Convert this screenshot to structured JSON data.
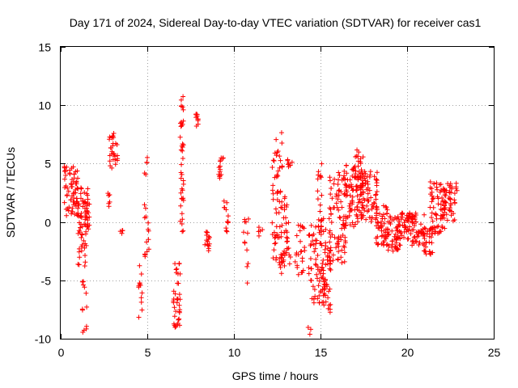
{
  "chart_data": {
    "type": "scatter",
    "title": "Day 171 of 2024, Sidereal Day-to-day VTEC variation (SDTVAR) for receiver cas1",
    "xlabel": "GPS time / hours",
    "ylabel": "SDTVAR / TECUs",
    "xlim": [
      0,
      25
    ],
    "ylim": [
      -10,
      15
    ],
    "x_ticks": [
      0,
      5,
      10,
      15,
      20,
      25
    ],
    "y_ticks": [
      -10,
      -5,
      0,
      5,
      10,
      15
    ],
    "grid": true,
    "marker": "+",
    "color": "#ff0000",
    "clusters": [
      {
        "x0": 0.2,
        "x1": 1.0,
        "y0": 0.5,
        "y1": 4.8,
        "n": 70
      },
      {
        "x0": 0.9,
        "x1": 1.6,
        "y0": -4.0,
        "y1": 3.0,
        "n": 60
      },
      {
        "x0": 1.2,
        "x1": 1.5,
        "y0": -9.6,
        "y1": -5.0,
        "n": 12
      },
      {
        "x0": 1.4,
        "x1": 1.7,
        "y0": -0.5,
        "y1": 2.0,
        "n": 18
      },
      {
        "x0": 2.8,
        "x1": 3.3,
        "y0": 4.5,
        "y1": 7.6,
        "n": 28
      },
      {
        "x0": 2.7,
        "x1": 2.9,
        "y0": 1.2,
        "y1": 2.6,
        "n": 6
      },
      {
        "x0": 3.4,
        "x1": 3.6,
        "y0": -1.0,
        "y1": -0.1,
        "n": 4
      },
      {
        "x0": 4.5,
        "x1": 4.7,
        "y0": -8.6,
        "y1": -3.5,
        "n": 12
      },
      {
        "x0": 4.8,
        "x1": 5.1,
        "y0": -3.0,
        "y1": 1.6,
        "n": 14
      },
      {
        "x0": 4.8,
        "x1": 5.0,
        "y0": 3.8,
        "y1": 5.6,
        "n": 5
      },
      {
        "x0": 6.5,
        "x1": 6.9,
        "y0": -9.2,
        "y1": -3.5,
        "n": 38
      },
      {
        "x0": 6.9,
        "x1": 7.1,
        "y0": -1.0,
        "y1": 10.8,
        "n": 40
      },
      {
        "x0": 7.8,
        "x1": 8.0,
        "y0": 8.2,
        "y1": 9.3,
        "n": 10
      },
      {
        "x0": 8.3,
        "x1": 8.6,
        "y0": -2.5,
        "y1": -0.5,
        "n": 16
      },
      {
        "x0": 9.1,
        "x1": 9.4,
        "y0": 3.5,
        "y1": 5.5,
        "n": 14
      },
      {
        "x0": 9.4,
        "x1": 9.7,
        "y0": -1.0,
        "y1": 2.0,
        "n": 12
      },
      {
        "x0": 10.5,
        "x1": 10.9,
        "y0": -5.3,
        "y1": 0.3,
        "n": 12
      },
      {
        "x0": 11.4,
        "x1": 11.7,
        "y0": -1.2,
        "y1": -0.4,
        "n": 5
      },
      {
        "x0": 12.2,
        "x1": 12.8,
        "y0": -3.5,
        "y1": 8.0,
        "n": 60
      },
      {
        "x0": 12.6,
        "x1": 13.3,
        "y0": -4.5,
        "y1": 2.5,
        "n": 40
      },
      {
        "x0": 13.1,
        "x1": 13.4,
        "y0": 4.5,
        "y1": 5.4,
        "n": 8
      },
      {
        "x0": 13.5,
        "x1": 14.5,
        "y0": -5.0,
        "y1": 0.0,
        "n": 30
      },
      {
        "x0": 14.2,
        "x1": 14.5,
        "y0": -9.7,
        "y1": -9.0,
        "n": 3
      },
      {
        "x0": 14.3,
        "x1": 15.3,
        "y0": -7.0,
        "y1": 0.5,
        "n": 60
      },
      {
        "x0": 14.8,
        "x1": 15.1,
        "y0": -2.0,
        "y1": 5.0,
        "n": 20
      },
      {
        "x0": 15.0,
        "x1": 15.6,
        "y0": -7.8,
        "y1": -2.0,
        "n": 50
      },
      {
        "x0": 15.5,
        "x1": 16.5,
        "y0": -3.5,
        "y1": 4.5,
        "n": 80
      },
      {
        "x0": 16.3,
        "x1": 17.2,
        "y0": -0.5,
        "y1": 5.0,
        "n": 70
      },
      {
        "x0": 17.0,
        "x1": 17.5,
        "y0": 0.5,
        "y1": 6.5,
        "n": 40
      },
      {
        "x0": 17.3,
        "x1": 18.3,
        "y0": 0.0,
        "y1": 4.5,
        "n": 70
      },
      {
        "x0": 18.2,
        "x1": 18.9,
        "y0": -2.0,
        "y1": 1.5,
        "n": 50
      },
      {
        "x0": 18.8,
        "x1": 19.6,
        "y0": -2.5,
        "y1": 0.5,
        "n": 50
      },
      {
        "x0": 19.4,
        "x1": 20.3,
        "y0": -1.5,
        "y1": 1.0,
        "n": 50
      },
      {
        "x0": 20.2,
        "x1": 21.0,
        "y0": -2.0,
        "y1": 1.0,
        "n": 45
      },
      {
        "x0": 20.9,
        "x1": 21.5,
        "y0": -2.8,
        "y1": -0.5,
        "n": 30
      },
      {
        "x0": 21.3,
        "x1": 22.2,
        "y0": -1.0,
        "y1": 3.5,
        "n": 60
      },
      {
        "x0": 22.0,
        "x1": 22.9,
        "y0": 0.0,
        "y1": 3.5,
        "n": 50
      }
    ]
  }
}
